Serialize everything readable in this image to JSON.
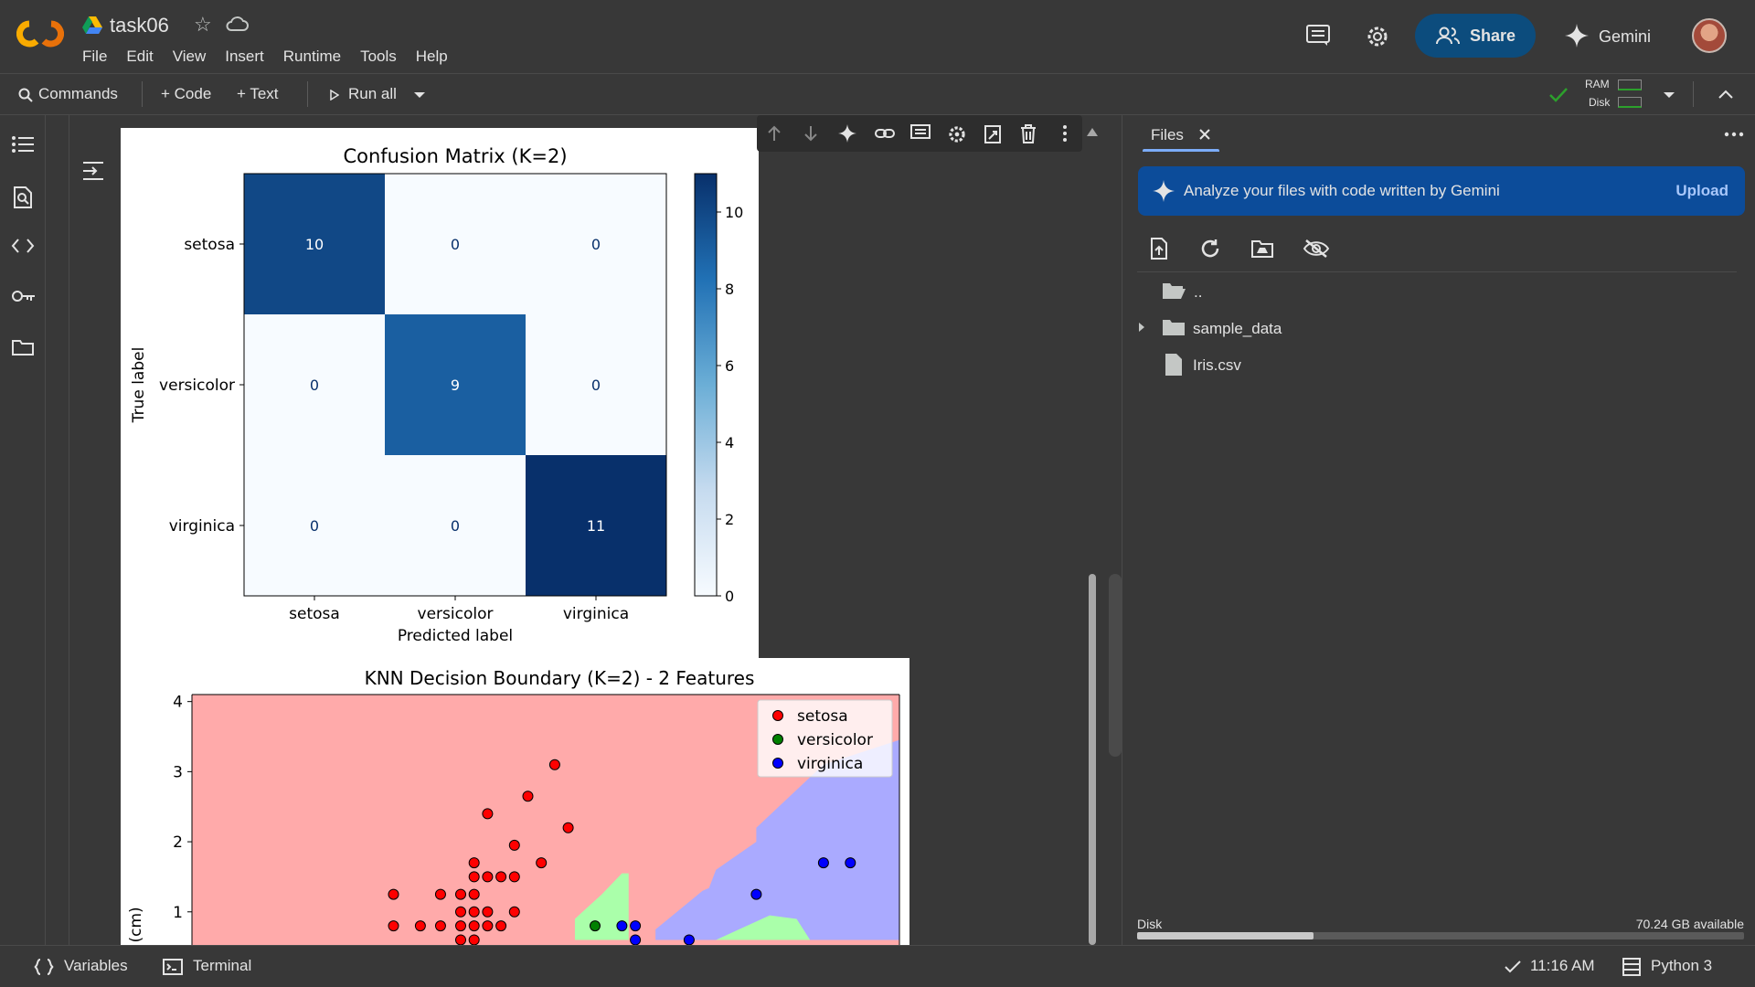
{
  "app": {
    "notebook_title": "task06",
    "menu": [
      "File",
      "Edit",
      "View",
      "Insert",
      "Runtime",
      "Tools",
      "Help"
    ],
    "share_label": "Share",
    "gemini_label": "Gemini"
  },
  "toolbar": {
    "commands_label": "Commands",
    "code_label": "+ Code",
    "text_label": "+ Text",
    "run_all_label": "Run all",
    "ram_label": "RAM",
    "disk_label": "Disk"
  },
  "files_panel": {
    "tab_label": "Files",
    "banner_text": "Analyze your files with code written by Gemini",
    "upload_label": "Upload",
    "items": [
      {
        "name": "..",
        "type": "parent"
      },
      {
        "name": "sample_data",
        "type": "folder"
      },
      {
        "name": "Iris.csv",
        "type": "file"
      }
    ],
    "disk_label": "Disk",
    "disk_available": "70.24 GB available",
    "disk_used_fraction": 0.29
  },
  "statusbar": {
    "variables_label": "Variables",
    "terminal_label": "Terminal",
    "time_label": "11:16 AM",
    "kernel_label": "Python 3"
  },
  "colors": {
    "accent_blue": "#0c4c7d",
    "banner_blue": "#0c4c9a",
    "connected_green": "#2ca02c"
  },
  "chart_data": [
    {
      "type": "heatmap",
      "title": "Confusion Matrix (K=2)",
      "xlabel": "Predicted label",
      "ylabel": "True label",
      "x_categories": [
        "setosa",
        "versicolor",
        "virginica"
      ],
      "y_categories": [
        "setosa",
        "versicolor",
        "virginica"
      ],
      "values": [
        [
          10,
          0,
          0
        ],
        [
          0,
          9,
          0
        ],
        [
          0,
          0,
          11
        ]
      ],
      "colorbar_ticks": [
        0,
        2,
        4,
        6,
        8,
        10
      ],
      "colormap": "Blues"
    },
    {
      "type": "scatter",
      "title": "KNN Decision Boundary (K=2) - 2 Features",
      "ylabel": "h (cm)",
      "ylim_visible": [
        0.6,
        4.1
      ],
      "y_ticks": [
        1,
        2,
        3,
        4
      ],
      "legend_placement": "top-right",
      "series": [
        {
          "name": "setosa",
          "color": "#ff0000",
          "points": [
            [
              0.0,
              0.8
            ],
            [
              0.2,
              0.8
            ],
            [
              0.35,
              0.8
            ],
            [
              0.5,
              0.8
            ],
            [
              0.6,
              0.8
            ],
            [
              0.7,
              0.8
            ],
            [
              0.8,
              0.8
            ],
            [
              0.0,
              1.25
            ],
            [
              0.35,
              1.25
            ],
            [
              0.5,
              1.25
            ],
            [
              0.5,
              1.0
            ],
            [
              0.6,
              1.0
            ],
            [
              0.7,
              1.0
            ],
            [
              0.9,
              1.0
            ],
            [
              0.6,
              1.25
            ],
            [
              0.7,
              1.5
            ],
            [
              0.8,
              1.5
            ],
            [
              0.9,
              1.5
            ],
            [
              0.6,
              1.5
            ],
            [
              0.6,
              1.7
            ],
            [
              0.9,
              1.95
            ],
            [
              1.1,
              1.7
            ],
            [
              0.7,
              2.4
            ],
            [
              1.0,
              2.65
            ],
            [
              1.2,
              3.1
            ],
            [
              1.3,
              2.2
            ],
            [
              0.5,
              0.6
            ],
            [
              0.6,
              0.6
            ]
          ]
        },
        {
          "name": "versicolor",
          "color": "#008000",
          "points": [
            [
              1.5,
              0.8
            ]
          ]
        },
        {
          "name": "virginica",
          "color": "#0000ff",
          "points": [
            [
              1.7,
              0.8
            ],
            [
              1.8,
              0.8
            ],
            [
              1.8,
              0.6
            ],
            [
              2.2,
              0.6
            ],
            [
              2.7,
              1.25
            ],
            [
              3.2,
              1.7
            ],
            [
              3.4,
              1.7
            ]
          ]
        }
      ]
    }
  ]
}
